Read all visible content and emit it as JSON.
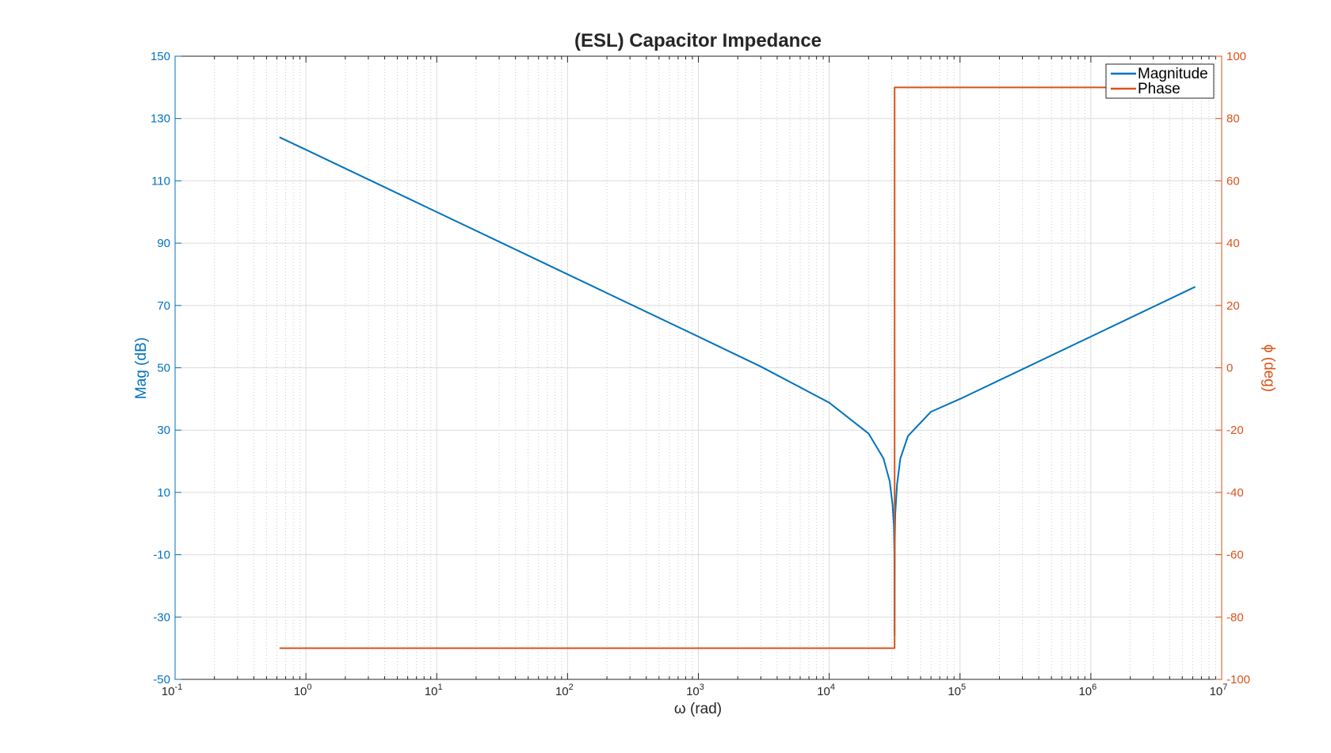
{
  "chart_data": {
    "type": "line",
    "title": "(ESL) Capacitor Impedance",
    "xlabel": "ω (rad)",
    "ylabel_left": "Mag (dB)",
    "ylabel_right": "ϕ (deg)",
    "x_scale": "log",
    "xlim": [
      0.1,
      10000000
    ],
    "ylim_left": [
      -50,
      150
    ],
    "ylim_right": [
      -100,
      100
    ],
    "x_ticks": [
      {
        "base": "10",
        "exp": "-1",
        "value": 0.1
      },
      {
        "base": "10",
        "exp": "0",
        "value": 1
      },
      {
        "base": "10",
        "exp": "1",
        "value": 10
      },
      {
        "base": "10",
        "exp": "2",
        "value": 100
      },
      {
        "base": "10",
        "exp": "3",
        "value": 1000
      },
      {
        "base": "10",
        "exp": "4",
        "value": 10000
      },
      {
        "base": "10",
        "exp": "5",
        "value": 100000
      },
      {
        "base": "10",
        "exp": "6",
        "value": 1000000
      },
      {
        "base": "10",
        "exp": "7",
        "value": 10000000
      }
    ],
    "y_ticks_left": [
      150,
      130,
      110,
      90,
      70,
      50,
      30,
      10,
      -10,
      -30,
      -50
    ],
    "y_ticks_right": [
      100,
      80,
      60,
      40,
      20,
      0,
      -20,
      -40,
      -60,
      -80,
      -100
    ],
    "grid": true,
    "minor_grid": true,
    "legend_position": "top-right",
    "series": [
      {
        "name": "Magnitude",
        "axis": "left",
        "color": "#0072BD",
        "x": [
          0.628,
          1,
          10,
          100,
          1000,
          3000,
          10000,
          20000,
          26000,
          29000,
          30500,
          31200,
          31500,
          31600,
          31700,
          32000,
          33000,
          35000,
          40000,
          60000,
          100000,
          1000000,
          6280000
        ],
        "y": [
          124.0,
          120.0,
          100.0,
          80.0,
          60.0,
          50.4,
          38.8,
          28.9,
          20.9,
          13.6,
          6.1,
          -0.6,
          -9.0,
          -36.0,
          -6.0,
          3.2,
          12.5,
          20.9,
          28.1,
          35.9,
          40.0,
          60.0,
          76.0
        ]
      },
      {
        "name": "Phase",
        "axis": "right",
        "color": "#D95319",
        "x": [
          0.628,
          31620,
          31620,
          6280000
        ],
        "y": [
          -90,
          -90,
          90,
          90
        ]
      }
    ]
  }
}
